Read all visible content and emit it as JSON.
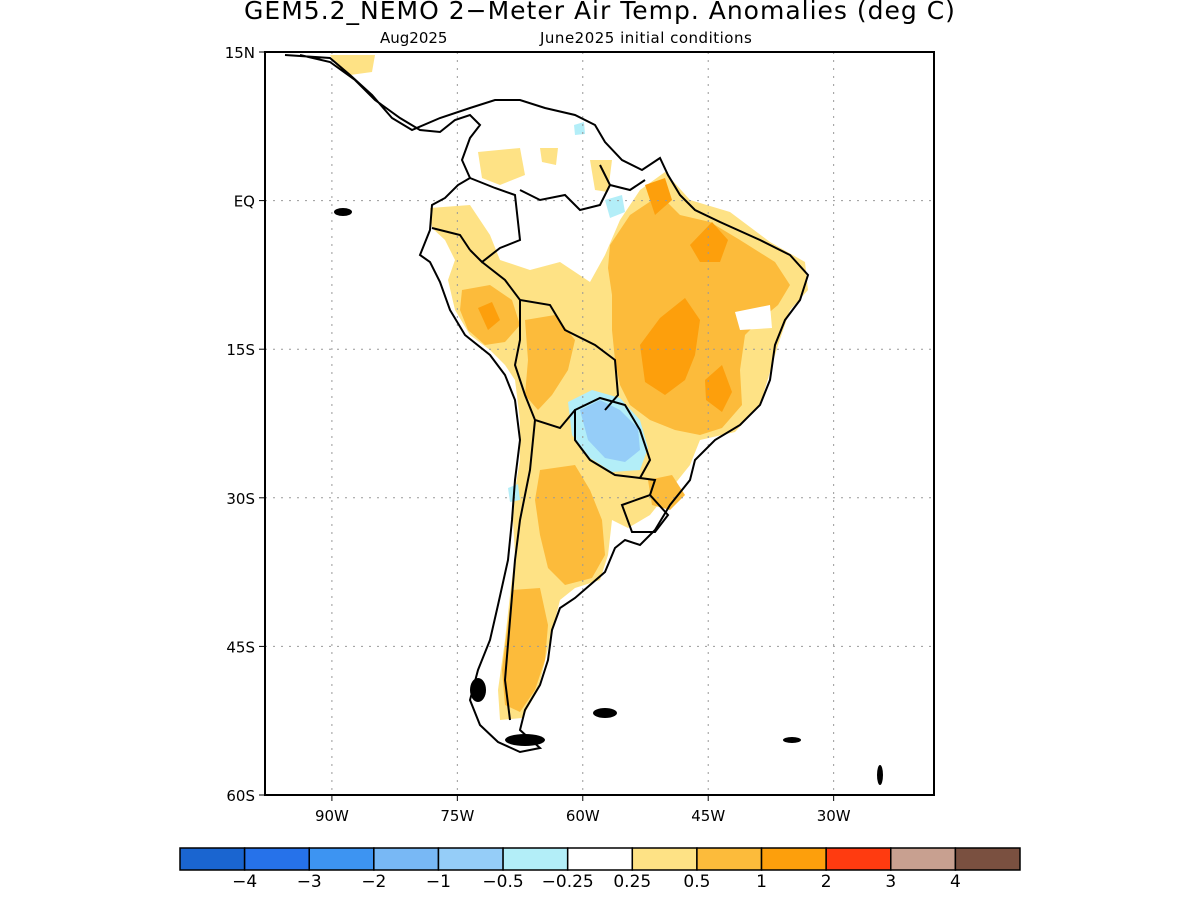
{
  "title": "GEM5.2_NEMO 2−Meter Air Temp. Anomalies (deg C)",
  "subtitle_left": "Aug2025",
  "subtitle_right": "June2025 initial conditions",
  "map": {
    "y_ticks": [
      "15N",
      "EQ",
      "15S",
      "30S",
      "45S",
      "60S"
    ],
    "x_ticks": [
      "90W",
      "75W",
      "60W",
      "45W",
      "30W"
    ],
    "lon_range": [
      -98,
      -18
    ],
    "lat_range": [
      -60,
      15
    ],
    "grid": "dotted"
  },
  "colorbar": {
    "colors": [
      "#1a65d0",
      "#2672ea",
      "#3d94f2",
      "#78b8f5",
      "#95cdf8",
      "#b3eef8",
      "#ffffff",
      "#fee285",
      "#fcbb3b",
      "#fd9f0c",
      "#ff3b10",
      "#c8a090",
      "#7a5040"
    ],
    "labels": [
      "−4",
      "−3",
      "−2",
      "−1",
      "−0.5",
      "−0.25",
      "0.25",
      "0.5",
      "1",
      "2",
      "3",
      "4"
    ]
  }
}
